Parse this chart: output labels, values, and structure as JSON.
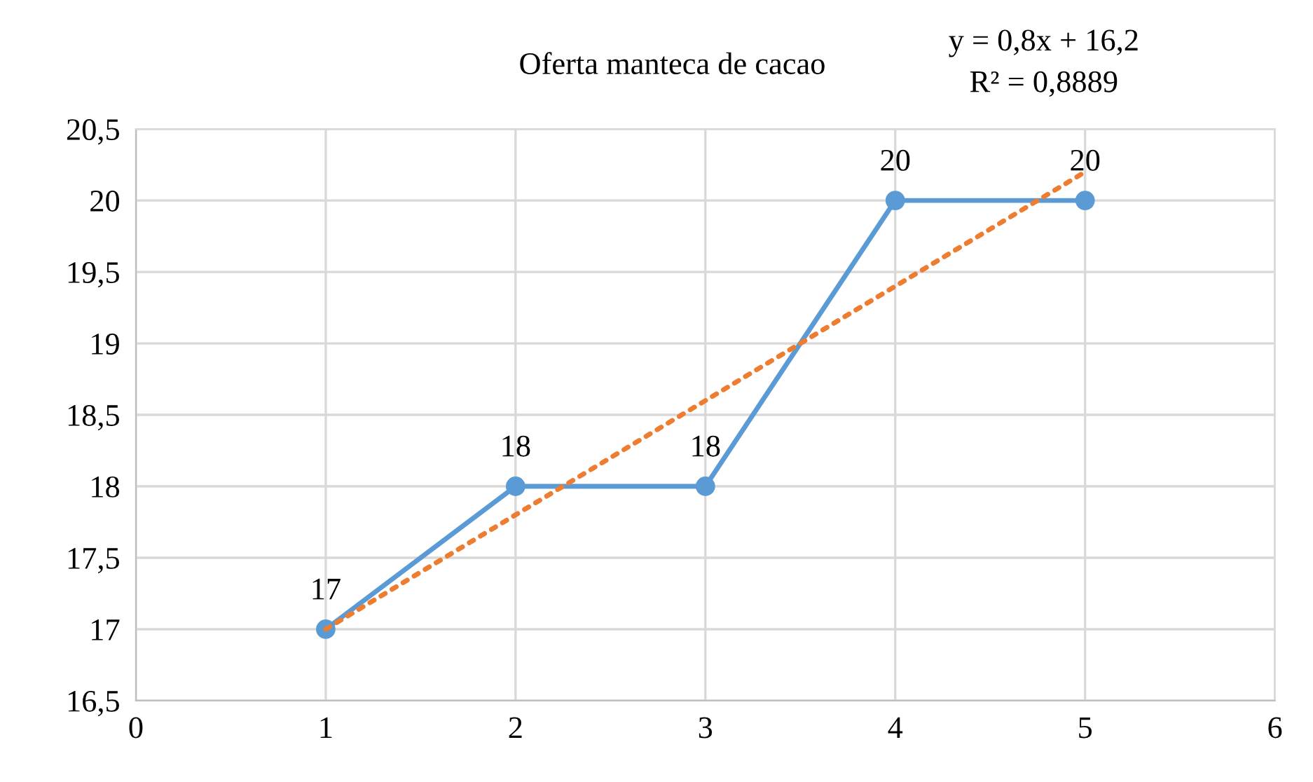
{
  "chart_data": {
    "type": "line",
    "title": "Oferta manteca de cacao",
    "x": [
      1,
      2,
      3,
      4,
      5
    ],
    "series": [
      {
        "color": "#5b9bd5",
        "values": [
          17,
          18,
          18,
          20,
          20
        ],
        "marker": "circle",
        "line_style": "solid",
        "value_labels": [
          "17",
          "18",
          "18",
          "20",
          "20"
        ]
      },
      {
        "type": "line",
        "x": [
          1,
          5
        ],
        "color": "#ed7d31",
        "values": [
          17,
          20.2
        ],
        "marker": "none",
        "line_style": "dotted"
      }
    ],
    "annotations": [
      "y = 0,8x + 16,2",
      "R² = 0,8889"
    ],
    "xlim": [
      0,
      6
    ],
    "xticks": [
      0,
      1,
      2,
      3,
      4,
      5,
      6
    ],
    "ylim": [
      16.5,
      20.5
    ],
    "yticks": [
      {
        "value": 16.5,
        "label": "16,5"
      },
      17,
      {
        "value": 17.5,
        "label": "17,5"
      },
      18,
      {
        "value": 18.5,
        "label": "18,5"
      },
      19,
      {
        "value": 19.5,
        "label": "19,5"
      },
      20,
      {
        "value": 20.5,
        "label": "20,5"
      }
    ],
    "grid": true
  }
}
